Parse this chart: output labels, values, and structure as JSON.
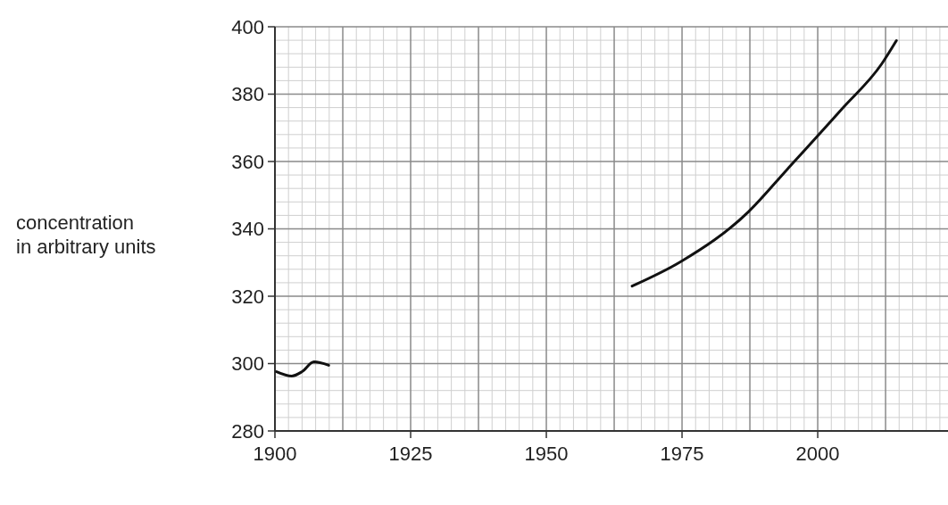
{
  "chart_data": {
    "type": "line",
    "ylabel": "concentration\nin arbitrary units",
    "xlim": [
      1900,
      2024
    ],
    "xticks": [
      1900,
      1925,
      1950,
      1975,
      2000
    ],
    "ylim": [
      280,
      400
    ],
    "yticks": [
      280,
      300,
      320,
      340,
      360,
      380,
      400
    ],
    "grid": true,
    "marker": "none",
    "line_style": "solid",
    "series": [
      {
        "color": "#111111",
        "x": [
          1900.3,
          1903.1,
          1905,
          1907.2,
          1909.9,
          1915,
          1960,
          1965.8,
          1974.7,
          1987.2,
          1994.4,
          2004.4,
          2011.8,
          2014.5
        ],
        "values": [
          297.6,
          296.3,
          297.6,
          300.5,
          299.5,
          null,
          null,
          323,
          330.2,
          345,
          357.7,
          375.5,
          389,
          395.9
        ]
      }
    ]
  }
}
